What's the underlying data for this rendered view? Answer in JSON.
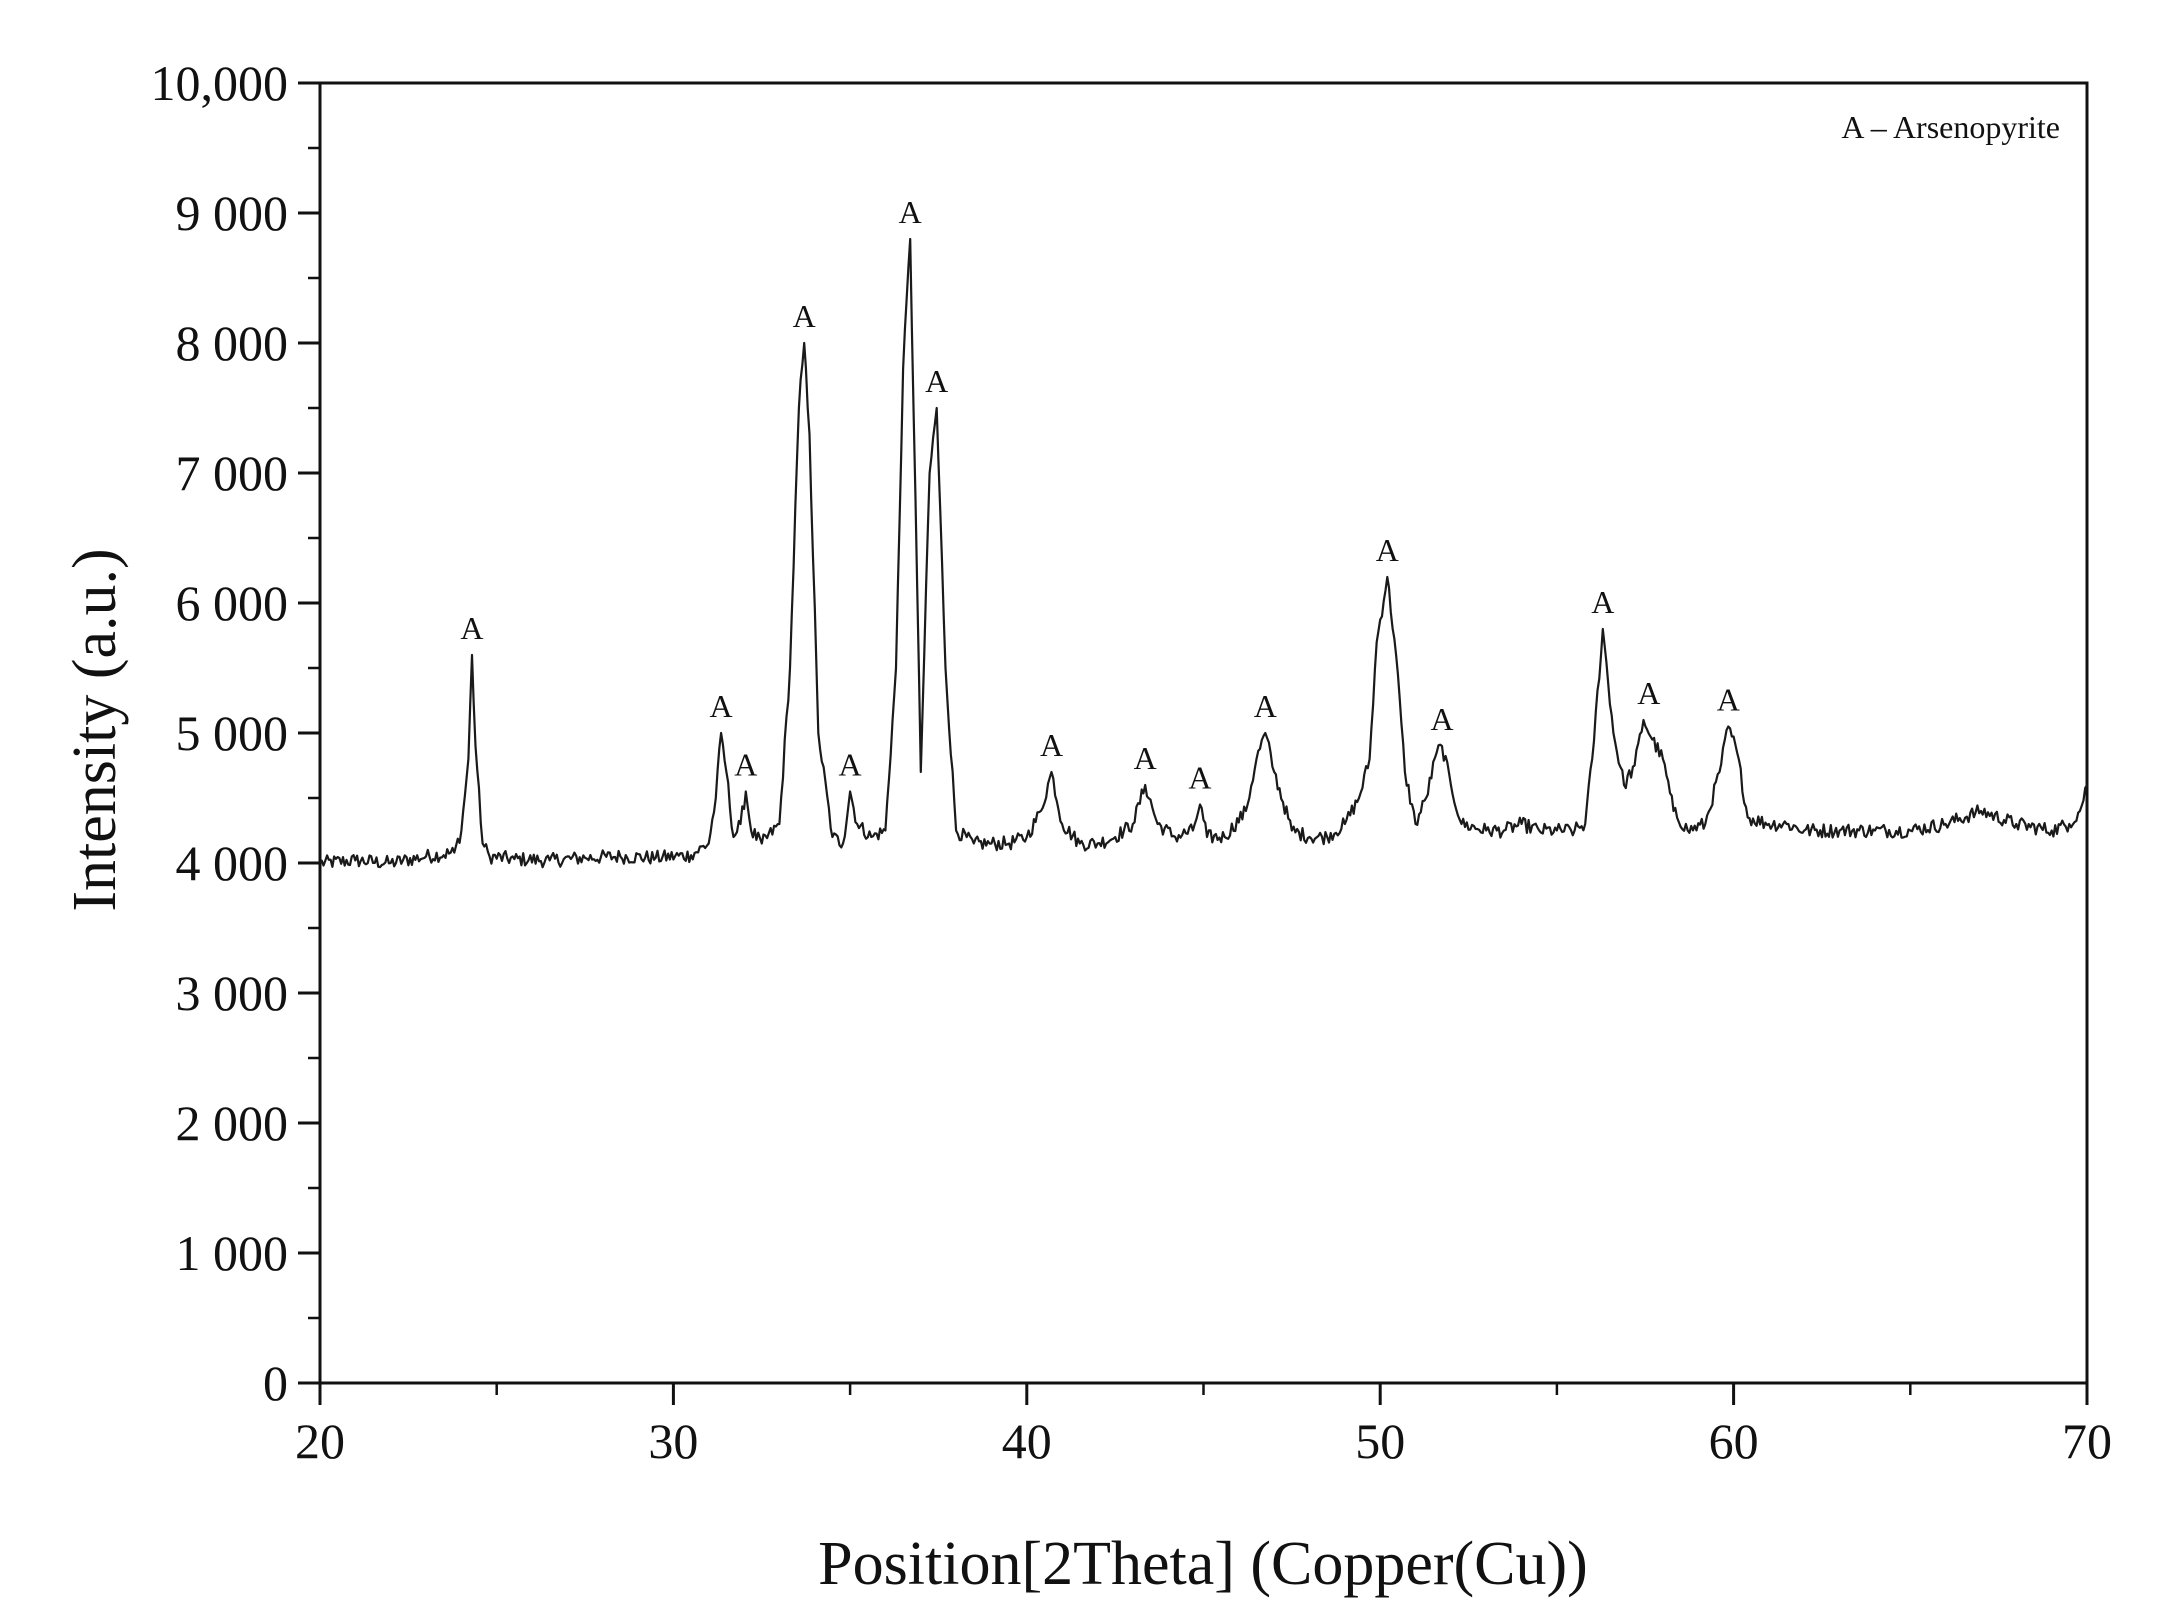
{
  "chart_data": {
    "type": "line",
    "title": "",
    "xlabel": "Position[2Theta] (Copper(Cu))",
    "ylabel": "Intensity (a.u.)",
    "xlim": [
      20,
      70
    ],
    "ylim": [
      0,
      10000
    ],
    "x_ticks": [
      20,
      30,
      40,
      50,
      60,
      70
    ],
    "x_tick_labels": [
      "20",
      "30",
      "40",
      "50",
      "60",
      "70"
    ],
    "y_ticks": [
      0,
      1000,
      2000,
      3000,
      4000,
      5000,
      6000,
      7000,
      8000,
      9000,
      10000
    ],
    "y_tick_labels": [
      "0",
      "1 000",
      "2 000",
      "3 000",
      "4 000",
      "5 000",
      "6 000",
      "7 000",
      "8 000",
      "9 000",
      "10,000"
    ],
    "grid": false,
    "legend_position": "top-right",
    "legend_text": "A – Arsenopyrite",
    "line_color": "#1a1a1a",
    "series": [
      {
        "x": [
          20.0,
          21.0,
          22.0,
          23.0,
          23.8,
          24.0,
          24.2,
          24.3,
          24.4,
          24.6,
          24.8,
          25.5,
          26.5,
          27.5,
          28.5,
          29.5,
          30.5,
          31.0,
          31.2,
          31.35,
          31.5,
          31.7,
          31.9,
          32.05,
          32.2,
          32.5,
          33.0,
          33.3,
          33.55,
          33.7,
          33.85,
          34.1,
          34.5,
          34.8,
          35.0,
          35.2,
          35.6,
          36.0,
          36.3,
          36.5,
          36.7,
          36.85,
          37.0,
          37.25,
          37.45,
          37.7,
          38.0,
          38.5,
          39.0,
          39.5,
          40.0,
          40.4,
          40.7,
          41.0,
          41.5,
          42.0,
          42.5,
          43.0,
          43.35,
          43.7,
          44.2,
          44.7,
          44.9,
          45.1,
          45.6,
          46.2,
          46.5,
          46.75,
          47.0,
          47.5,
          48.0,
          48.5,
          49.0,
          49.4,
          49.7,
          49.9,
          50.2,
          50.45,
          50.7,
          51.0,
          51.3,
          51.6,
          51.75,
          52.0,
          52.3,
          53.0,
          53.5,
          54.0,
          54.5,
          55.0,
          55.5,
          55.8,
          56.0,
          56.3,
          56.6,
          56.9,
          57.2,
          57.45,
          57.7,
          58.0,
          58.3,
          58.7,
          59.2,
          59.6,
          59.85,
          60.1,
          60.4,
          61.0,
          61.5,
          62.0,
          63.0,
          64.0,
          65.0,
          66.0,
          67.0,
          68.0,
          69.0,
          69.5,
          69.8,
          70.0
        ],
        "y": [
          4000,
          4020,
          4000,
          4050,
          4080,
          4250,
          4800,
          5600,
          4900,
          4150,
          4050,
          4030,
          4020,
          4040,
          4050,
          4040,
          4060,
          4150,
          4500,
          5000,
          4700,
          4200,
          4300,
          4550,
          4250,
          4150,
          4300,
          5500,
          7500,
          8000,
          7300,
          5000,
          4200,
          4150,
          4550,
          4300,
          4200,
          4250,
          5500,
          7800,
          8800,
          6800,
          4700,
          7000,
          7500,
          5500,
          4250,
          4150,
          4150,
          4150,
          4200,
          4400,
          4700,
          4300,
          4150,
          4150,
          4200,
          4300,
          4600,
          4300,
          4200,
          4250,
          4450,
          4200,
          4200,
          4400,
          4800,
          5000,
          4700,
          4250,
          4200,
          4200,
          4300,
          4500,
          4800,
          5700,
          6200,
          5600,
          4700,
          4300,
          4500,
          4850,
          4900,
          4600,
          4300,
          4250,
          4250,
          4300,
          4250,
          4250,
          4250,
          4300,
          4800,
          5800,
          5000,
          4600,
          4750,
          5100,
          4950,
          4800,
          4400,
          4250,
          4300,
          4700,
          5050,
          4850,
          4350,
          4300,
          4300,
          4250,
          4250,
          4250,
          4250,
          4300,
          4400,
          4300,
          4250,
          4300,
          4400,
          4600
        ]
      }
    ],
    "annotations": [
      {
        "x": 24.3,
        "y": 5600,
        "text": "A"
      },
      {
        "x": 31.35,
        "y": 5000,
        "text": "A"
      },
      {
        "x": 32.05,
        "y": 4550,
        "text": "A"
      },
      {
        "x": 33.7,
        "y": 8000,
        "text": "A"
      },
      {
        "x": 35.0,
        "y": 4550,
        "text": "A"
      },
      {
        "x": 36.7,
        "y": 8800,
        "text": "A"
      },
      {
        "x": 37.45,
        "y": 7500,
        "text": "A"
      },
      {
        "x": 40.7,
        "y": 4700,
        "text": "A"
      },
      {
        "x": 43.35,
        "y": 4600,
        "text": "A"
      },
      {
        "x": 44.9,
        "y": 4450,
        "text": "A"
      },
      {
        "x": 46.75,
        "y": 5000,
        "text": "A"
      },
      {
        "x": 50.2,
        "y": 6200,
        "text": "A"
      },
      {
        "x": 51.75,
        "y": 4900,
        "text": "A"
      },
      {
        "x": 56.3,
        "y": 5800,
        "text": "A"
      },
      {
        "x": 57.6,
        "y": 5100,
        "text": "A"
      },
      {
        "x": 59.85,
        "y": 5050,
        "text": "A"
      }
    ]
  }
}
